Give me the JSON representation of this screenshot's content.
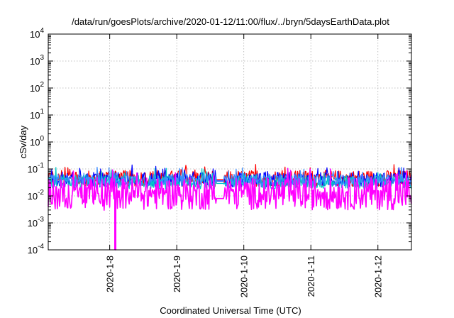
{
  "chart_data": {
    "type": "line",
    "title": "/data/run/goesPlots/archive/2020-01-12/11:00/flux/../bryn/5daysEarthData.plot",
    "xlabel": "Coordinated Universal Time (UTC)",
    "ylabel": "cSv/day",
    "yscale": "log",
    "ylim": [
      0.0001,
      10000
    ],
    "xlim": [
      "2020-01-07T02:00",
      "2020-01-12T12:00"
    ],
    "grid": true,
    "legend": "none",
    "ytick_labels": [
      {
        "base": "10",
        "exp": "-4"
      },
      {
        "base": "10",
        "exp": "-3"
      },
      {
        "base": "10",
        "exp": "-2"
      },
      {
        "base": "10",
        "exp": "-1"
      },
      {
        "base": "10",
        "exp": "0"
      },
      {
        "base": "10",
        "exp": "1"
      },
      {
        "base": "10",
        "exp": "2"
      },
      {
        "base": "10",
        "exp": "3"
      },
      {
        "base": "10",
        "exp": "4"
      }
    ],
    "xtick_labels": [
      "2020-1-8",
      "2020-1-9",
      "2020-1-10",
      "2020-1-11",
      "2020-1-12"
    ],
    "xtick_dates": [
      "2020-01-08",
      "2020-01-09",
      "2020-01-10",
      "2020-01-11",
      "2020-01-12"
    ],
    "series": [
      {
        "color": "#ff0000",
        "base": 0.045,
        "spread": 0.6,
        "drift": [
          0.085,
          0.12,
          0.065
        ]
      },
      {
        "color": "#0000ff",
        "base": 0.04,
        "spread": 0.55,
        "drift": [
          0.075,
          0.1,
          0.06
        ]
      },
      {
        "color": "#00c8c8",
        "base": 0.032,
        "spread": 0.5,
        "drift": [
          0.055,
          0.08,
          0.05
        ]
      },
      {
        "color": "#3c8cff",
        "base": 0.038,
        "spread": 0.45,
        "drift": [
          0.07,
          0.09,
          0.055
        ]
      },
      {
        "color": "#ff00ff",
        "base": 0.008,
        "spread": 1.2,
        "drift": [
          0.005,
          0.045,
          0.0065
        ]
      }
    ],
    "annotations": [
      {
        "type": "dip",
        "series": 4,
        "date": "2020-01-08T02:00",
        "min": 0.0001
      }
    ]
  }
}
